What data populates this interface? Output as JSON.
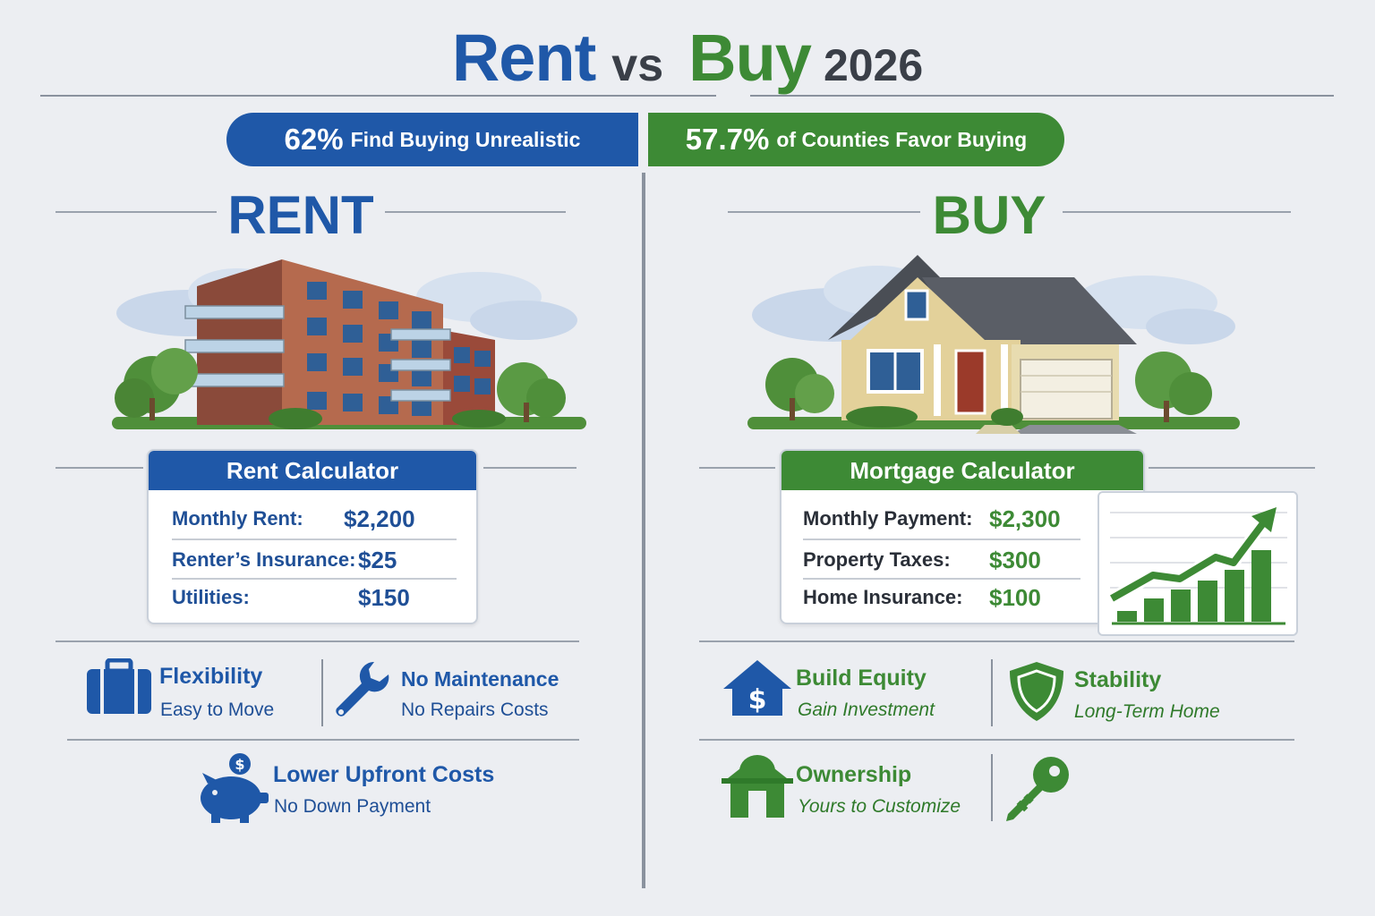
{
  "title": {
    "rent": "Rent",
    "vs": "vs",
    "buy": "Buy",
    "year": "2026"
  },
  "banners": {
    "left": {
      "pct": "62%",
      "text": "Find Buying Unrealistic"
    },
    "right": {
      "pct": "57.7%",
      "text": "of Counties Favor Buying"
    }
  },
  "rent": {
    "title": "RENT",
    "calculator": {
      "heading": "Rent Calculator",
      "rows": [
        {
          "label": "Monthly Rent:",
          "value": "$2,200"
        },
        {
          "label": "Renter’s Insurance:",
          "value": "$25"
        },
        {
          "label": "Utilities:",
          "value": "$150"
        }
      ]
    },
    "features": [
      {
        "icon": "briefcase-icon",
        "title": "Flexibility",
        "sub": "Easy to Move"
      },
      {
        "icon": "wrench-icon",
        "title": "No Maintenance",
        "sub": "No Repairs Costs"
      },
      {
        "icon": "piggy-bank-icon",
        "title": "Lower Upfront Costs",
        "sub": "No Down Payment"
      }
    ]
  },
  "buy": {
    "title": "BUY",
    "calculator": {
      "heading": "Mortgage Calculator",
      "rows": [
        {
          "label": "Monthly Payment:",
          "value": "$2,300"
        },
        {
          "label": "Property Taxes:",
          "value": "$300"
        },
        {
          "label": "Home Insurance:",
          "value": "$100"
        }
      ]
    },
    "features": [
      {
        "icon": "house-dollar-icon",
        "title": "Build Equity",
        "sub": "Gain Investment"
      },
      {
        "icon": "shield-icon",
        "title": "Stability",
        "sub": "Long-Term Home"
      },
      {
        "icon": "house-icon",
        "title": "Ownership",
        "sub": "Yours to Customize"
      },
      {
        "icon": "key-icon"
      }
    ]
  },
  "colors": {
    "blue": "#1f58a8",
    "green": "#3d8a35",
    "background": "#eceef2"
  }
}
